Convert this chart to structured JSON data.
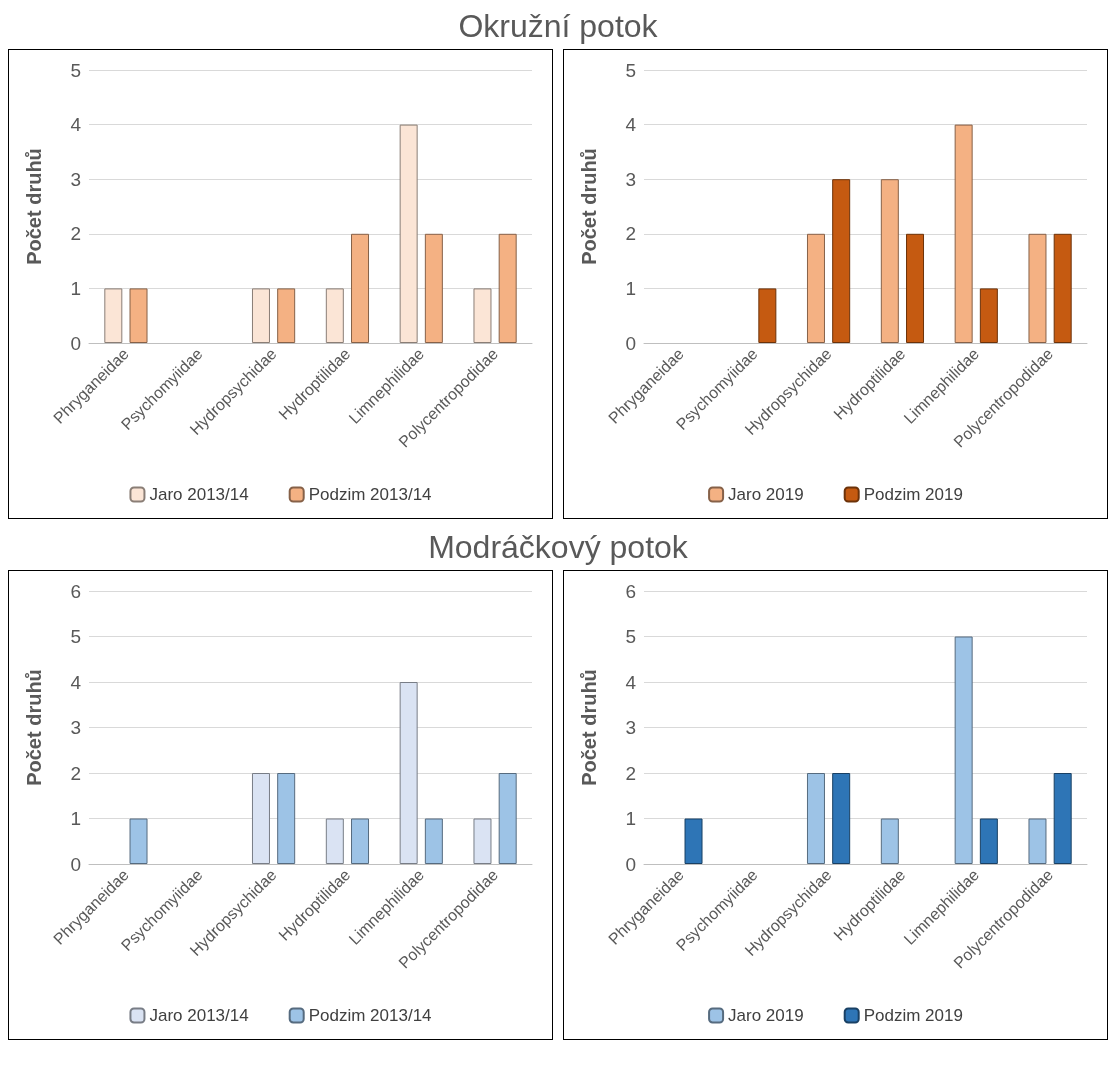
{
  "chart_data": [
    {
      "type": "bar",
      "title": "Okružní potok",
      "ylabel": "Počet druhů",
      "categories": [
        "Phryganeidae",
        "Psychomyiidae",
        "Hydropsychidae",
        "Hydroptilidae",
        "Limnephilidae",
        "Polycentropodidae"
      ],
      "series": [
        {
          "name": "Jaro 2013/14",
          "color": "#fbe5d6",
          "values": [
            1,
            0,
            1,
            1,
            4,
            1
          ]
        },
        {
          "name": "Podzim 2013/14",
          "color": "#f4b183",
          "values": [
            1,
            0,
            1,
            2,
            2,
            2
          ]
        }
      ],
      "ylim": [
        0,
        5
      ],
      "yticks": [
        0,
        1,
        2,
        3,
        4,
        5
      ],
      "grid": "y",
      "legend": "bottom"
    },
    {
      "type": "bar",
      "ylabel": "Počet druhů",
      "categories": [
        "Phryganeidae",
        "Psychomyiidae",
        "Hydropsychidae",
        "Hydroptilidae",
        "Limnephilidae",
        "Polycentropodidae"
      ],
      "series": [
        {
          "name": "Jaro 2019",
          "color": "#f4b183",
          "values": [
            0,
            0,
            2,
            3,
            4,
            2
          ]
        },
        {
          "name": "Podzim 2019",
          "color": "#c55a11",
          "values": [
            0,
            1,
            3,
            2,
            1,
            2
          ]
        }
      ],
      "ylim": [
        0,
        5
      ],
      "yticks": [
        0,
        1,
        2,
        3,
        4,
        5
      ],
      "grid": "y",
      "legend": "bottom"
    },
    {
      "type": "bar",
      "title": "Modráčkový potok",
      "ylabel": "Počet druhů",
      "categories": [
        "Phryganeidae",
        "Psychomyiidae",
        "Hydropsychidae",
        "Hydroptilidae",
        "Limnephilidae",
        "Polycentropodidae"
      ],
      "series": [
        {
          "name": "Jaro 2013/14",
          "color": "#dae3f3",
          "values": [
            0,
            0,
            2,
            1,
            4,
            1
          ]
        },
        {
          "name": "Podzim 2013/14",
          "color": "#9dc3e6",
          "values": [
            1,
            0,
            2,
            1,
            1,
            2
          ]
        }
      ],
      "ylim": [
        0,
        6
      ],
      "yticks": [
        0,
        1,
        2,
        3,
        4,
        5,
        6
      ],
      "grid": "y",
      "legend": "bottom"
    },
    {
      "type": "bar",
      "ylabel": "Počet druhů",
      "categories": [
        "Phryganeidae",
        "Psychomyiidae",
        "Hydropsychidae",
        "Hydroptilidae",
        "Limnephilidae",
        "Polycentropodidae"
      ],
      "series": [
        {
          "name": "Jaro 2019",
          "color": "#9dc3e6",
          "values": [
            0,
            0,
            2,
            1,
            5,
            1
          ]
        },
        {
          "name": "Podzim 2019",
          "color": "#2e75b6",
          "values": [
            1,
            0,
            2,
            0,
            1,
            2
          ]
        }
      ],
      "ylim": [
        0,
        6
      ],
      "yticks": [
        0,
        1,
        2,
        3,
        4,
        5,
        6
      ],
      "grid": "y",
      "legend": "bottom"
    }
  ]
}
